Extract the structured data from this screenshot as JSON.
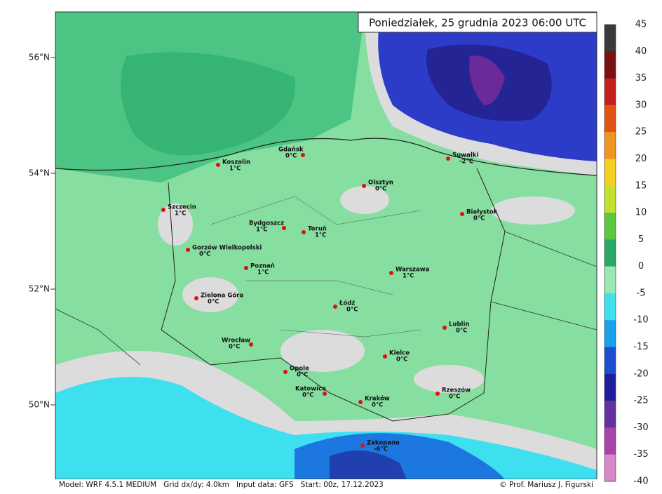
{
  "header": {
    "title": "Poniedziałek, 25 grudnia 2023 06:00 UTC"
  },
  "latitudes": [
    "56°N",
    "54°N",
    "52°N",
    "50°N"
  ],
  "colorbar": {
    "ticks": [
      45,
      40,
      35,
      30,
      25,
      20,
      15,
      10,
      5,
      0,
      -5,
      -10,
      -15,
      -20,
      -25,
      -30,
      -35,
      -40
    ]
  },
  "cities": [
    {
      "name": "Gdańsk",
      "temp": "0°C"
    },
    {
      "name": "Koszalin",
      "temp": "1°C"
    },
    {
      "name": "Szczecin",
      "temp": "1°C"
    },
    {
      "name": "Gorzów Wielkopolski",
      "temp": "0°C"
    },
    {
      "name": "Poznań",
      "temp": "1°C"
    },
    {
      "name": "Zielona Góra",
      "temp": "0°C"
    },
    {
      "name": "Wrocław",
      "temp": "0°C"
    },
    {
      "name": "Opole",
      "temp": "0°C"
    },
    {
      "name": "Katowice",
      "temp": "0°C"
    },
    {
      "name": "Kraków",
      "temp": "0°C"
    },
    {
      "name": "Zakopane",
      "temp": "-6°C"
    },
    {
      "name": "Rzeszów",
      "temp": "0°C"
    },
    {
      "name": "Kielce",
      "temp": "0°C"
    },
    {
      "name": "Łódź",
      "temp": "0°C"
    },
    {
      "name": "Warszawa",
      "temp": "1°C"
    },
    {
      "name": "Lublin",
      "temp": "0°C"
    },
    {
      "name": "Białystok",
      "temp": "0°C"
    },
    {
      "name": "Olsztyn",
      "temp": "0°C"
    },
    {
      "name": "Suwałki",
      "temp": "-2°C"
    },
    {
      "name": "Bydgoszcz",
      "temp": "1°C"
    },
    {
      "name": "Toruń",
      "temp": "1°C"
    }
  ],
  "footer": {
    "model": "Model: WRF 4.5.1 MEDIUM   Grid dx/dy: 4.0km   Input data: GFS   Start: 00z, 17.12.2023",
    "credit": "© Prof. Mariusz J. Figurski"
  }
}
